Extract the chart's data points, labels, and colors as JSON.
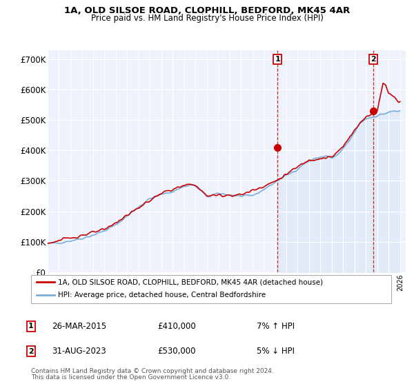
{
  "title1": "1A, OLD SILSOE ROAD, CLOPHILL, BEDFORD, MK45 4AR",
  "title2": "Price paid vs. HM Land Registry's House Price Index (HPI)",
  "ylabel_ticks": [
    "£0",
    "£100K",
    "£200K",
    "£300K",
    "£400K",
    "£500K",
    "£600K",
    "£700K"
  ],
  "ytick_vals": [
    0,
    100000,
    200000,
    300000,
    400000,
    500000,
    600000,
    700000
  ],
  "ylim": [
    0,
    730000
  ],
  "xlim_start": 1995.0,
  "xlim_end": 2026.5,
  "legend_line1": "1A, OLD SILSOE ROAD, CLOPHILL, BEDFORD, MK45 4AR (detached house)",
  "legend_line2": "HPI: Average price, detached house, Central Bedfordshire",
  "point1_date": "26-MAR-2015",
  "point1_price": "£410,000",
  "point1_hpi": "7% ↑ HPI",
  "point1_x": 2015.23,
  "point1_y": 410000,
  "point2_date": "31-AUG-2023",
  "point2_price": "£530,000",
  "point2_hpi": "5% ↓ HPI",
  "point2_x": 2023.67,
  "point2_y": 530000,
  "footnote1": "Contains HM Land Registry data © Crown copyright and database right 2024.",
  "footnote2": "This data is licensed under the Open Government Licence v3.0.",
  "line_color_red": "#cc0000",
  "line_color_blue": "#7aaddb",
  "shade_color": "#dce8f5",
  "bg_color": "#edf2fc",
  "grid_color": "#ffffff"
}
